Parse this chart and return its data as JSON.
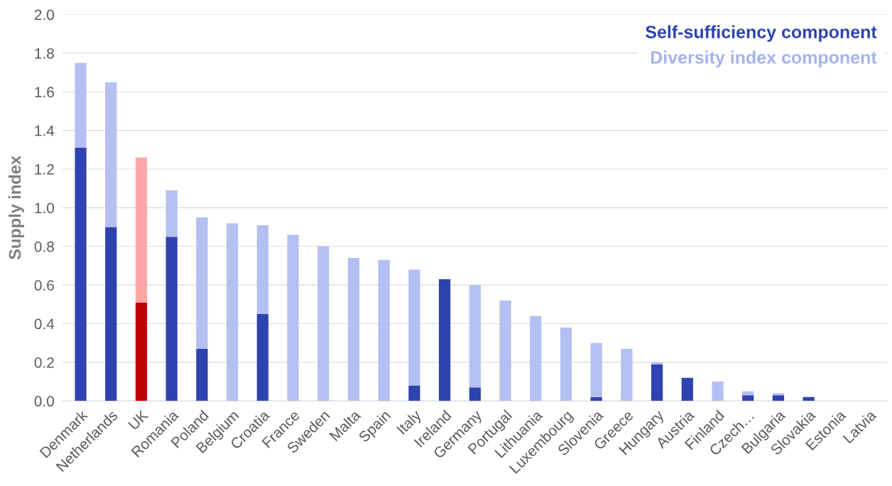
{
  "chart_data": {
    "type": "bar",
    "stacked": true,
    "ylabel": "Supply index",
    "categories": [
      "Denmark",
      "Netherlands",
      "UK",
      "Romania",
      "Poland",
      "Belgium",
      "Croatia",
      "France",
      "Sweden",
      "Malta",
      "Spain",
      "Italy",
      "Ireland",
      "Germany",
      "Portugal",
      "Lithuania",
      "Luxembourg",
      "Slovenia",
      "Greece",
      "Hungary",
      "Austria",
      "Finland",
      "Czech…",
      "Bulgaria",
      "Slovakia",
      "Estonia",
      "Latvia"
    ],
    "series": [
      {
        "name": "Self-sufficiency component",
        "color": "#2e43b0",
        "colors": [
          "#2e43b0",
          "#2e43b0",
          "#c00000",
          "#2e43b0",
          "#2e43b0",
          "#2e43b0",
          "#2e43b0",
          "#2e43b0",
          "#2e43b0",
          "#2e43b0",
          "#2e43b0",
          "#2e43b0",
          "#2e43b0",
          "#2e43b0",
          "#2e43b0",
          "#2e43b0",
          "#2e43b0",
          "#2e43b0",
          "#2e43b0",
          "#2e43b0",
          "#2e43b0",
          "#2e43b0",
          "#2e43b0",
          "#2e43b0",
          "#2e43b0",
          "#2e43b0",
          "#2e43b0"
        ],
        "values": [
          1.31,
          0.9,
          0.51,
          0.85,
          0.27,
          0,
          0.45,
          0,
          0,
          0,
          0,
          0.08,
          0.63,
          0.07,
          0,
          0,
          0,
          0.02,
          0,
          0.19,
          0.12,
          0,
          0.03,
          0.03,
          0.02,
          0,
          0
        ]
      },
      {
        "name": "Diversity index component",
        "color": "#b4c0f2",
        "colors": [
          "#b4c0f2",
          "#b4c0f2",
          "#ffa7a7",
          "#b4c0f2",
          "#b4c0f2",
          "#b4c0f2",
          "#b4c0f2",
          "#b4c0f2",
          "#b4c0f2",
          "#b4c0f2",
          "#b4c0f2",
          "#b4c0f2",
          "#b4c0f2",
          "#b4c0f2",
          "#b4c0f2",
          "#b4c0f2",
          "#b4c0f2",
          "#b4c0f2",
          "#b4c0f2",
          "#b4c0f2",
          "#b4c0f2",
          "#b4c0f2",
          "#b4c0f2",
          "#b4c0f2",
          "#b4c0f2",
          "#b4c0f2",
          "#b4c0f2"
        ],
        "values": [
          0.44,
          0.75,
          0.75,
          0.24,
          0.68,
          0.92,
          0.46,
          0.86,
          0.8,
          0.74,
          0.73,
          0.6,
          0,
          0.53,
          0.52,
          0.44,
          0.38,
          0.28,
          0.27,
          0.01,
          0,
          0.1,
          0.02,
          0.01,
          0,
          0,
          0
        ]
      }
    ],
    "ylim": [
      0,
      2
    ],
    "yticks": [
      {
        "value": 0,
        "label": "0.0"
      },
      {
        "value": 0.2,
        "label": "0.2"
      },
      {
        "value": 0.4,
        "label": "0.4"
      },
      {
        "value": 0.6,
        "label": "0.6"
      },
      {
        "value": 0.8,
        "label": "0.8"
      },
      {
        "value": 1,
        "label": "1.0"
      },
      {
        "value": 1.2,
        "label": "1.2"
      },
      {
        "value": 1.4,
        "label": "1.4"
      },
      {
        "value": 1.6,
        "label": "1.6"
      },
      {
        "value": 1.8,
        "label": "1.8"
      },
      {
        "value": 2,
        "label": "2.0"
      }
    ],
    "grid": "y",
    "legend": "top right"
  }
}
